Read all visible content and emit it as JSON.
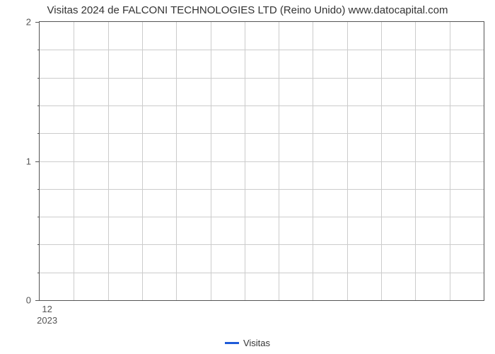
{
  "chart": {
    "type": "line",
    "title": "Visitas 2024 de FALCONI TECHNOLOGIES LTD (Reino Unido) www.datocapital.com",
    "title_fontsize": 15,
    "title_color": "#333333",
    "background_color": "#ffffff",
    "border_color": "#555555",
    "grid_color": "#cccccc",
    "y": {
      "min": 0,
      "max": 2,
      "major_ticks": [
        0,
        1,
        2
      ],
      "minor_per_major": 4,
      "label_color": "#555555",
      "label_fontsize": 13
    },
    "x": {
      "month_label": "12",
      "year_label": "2023",
      "major_tick_frac": 0.0185,
      "n_vertical_gridlines": 12,
      "label_color": "#555555",
      "label_fontsize": 13
    },
    "series": [
      {
        "name": "Visitas",
        "color": "#1f5bd8",
        "data": []
      }
    ],
    "legend": {
      "position": "bottom",
      "swatch_width": 20,
      "swatch_height": 2.5,
      "fontsize": 13,
      "text_color": "#333333"
    }
  }
}
